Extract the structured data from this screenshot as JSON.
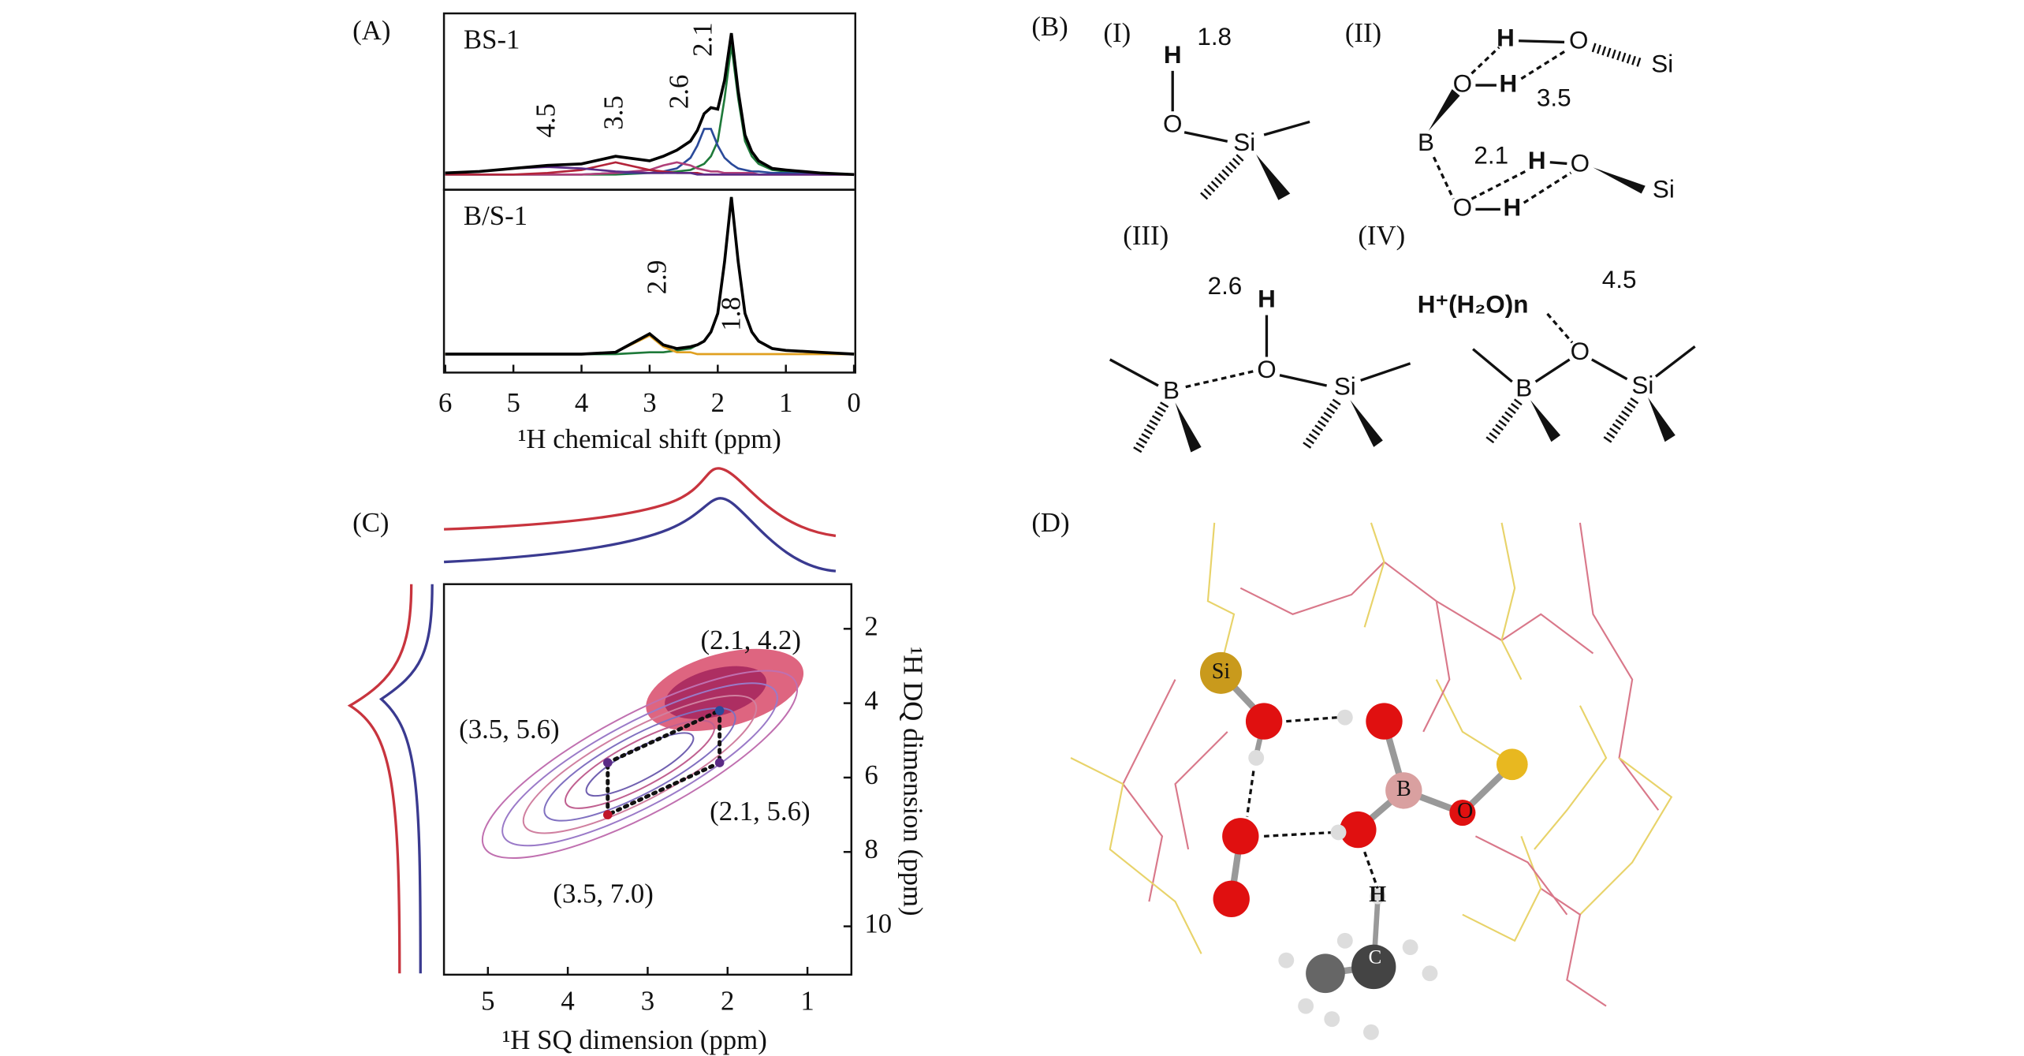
{
  "panel_labels": [
    "(A)",
    "(B)",
    "(C)",
    "(D)"
  ],
  "chart_data": [
    {
      "type": "line",
      "xlabel": "¹H chemical shift (ppm)",
      "xlim": [
        6,
        0
      ],
      "xticks": [
        6,
        5,
        4,
        3,
        2,
        1,
        0
      ],
      "x": [
        6,
        5.5,
        5,
        4.5,
        4,
        3.5,
        3,
        2.8,
        2.6,
        2.4,
        2.3,
        2.2,
        2.1,
        2,
        1.9,
        1.8,
        1.7,
        1.6,
        1.5,
        1.4,
        1.2,
        1,
        0.5,
        0
      ],
      "subplots": [
        {
          "label": "BS-1",
          "ylim": [
            -10,
            106
          ],
          "series": [
            {
              "color": "#000000",
              "values": [
                1,
                2,
                4,
                6,
                7,
                12,
                9,
                12,
                16,
                22,
                29,
                40,
                44,
                43,
                62,
                93,
                55,
                26,
                15,
                9,
                4,
                3,
                1,
                0
              ]
            },
            {
              "color": "#5b2a86",
              "label": 4.5,
              "values": [
                1,
                2,
                4,
                5,
                4,
                2,
                1,
                1,
                1,
                1,
                0,
                0,
                0,
                0,
                0,
                0,
                0,
                0,
                0,
                0,
                0,
                0,
                0,
                0
              ]
            },
            {
              "color": "#b3243a",
              "label": 3.5,
              "values": [
                0,
                0,
                0,
                1,
                3,
                8,
                3,
                2,
                1,
                1,
                1,
                0,
                0,
                0,
                0,
                0,
                0,
                0,
                0,
                0,
                0,
                0,
                0,
                0
              ]
            },
            {
              "color": "#b0407a",
              "label": 2.6,
              "values": [
                0,
                0,
                0,
                0,
                0,
                1,
                3,
                6,
                8,
                6,
                4,
                3,
                2,
                2,
                1,
                1,
                1,
                1,
                1,
                0,
                0,
                0,
                0,
                0
              ]
            },
            {
              "color": "#2a4a9a",
              "label": 2.1,
              "values": [
                0,
                0,
                0,
                0,
                0,
                1,
                1,
                2,
                4,
                11,
                19,
                30,
                30,
                19,
                11,
                7,
                4,
                3,
                2,
                2,
                1,
                1,
                0,
                0
              ]
            },
            {
              "color": "#1f7a3a",
              "values": [
                0,
                0,
                0,
                0,
                0,
                0,
                1,
                1,
                2,
                3,
                5,
                7,
                12,
                22,
                50,
                85,
                50,
                22,
                12,
                7,
                3,
                2,
                1,
                0
              ]
            }
          ]
        },
        {
          "label": "B/S-1",
          "ylim": [
            -10,
            89
          ],
          "series": [
            {
              "color": "#000000",
              "values": [
                0,
                0,
                0,
                0,
                0,
                1,
                11,
                5,
                3,
                4,
                5,
                7,
                12,
                22,
                50,
                85,
                50,
                22,
                12,
                7,
                3,
                2,
                1,
                0
              ]
            },
            {
              "color": "#e0a020",
              "label": 2.9,
              "values": [
                0,
                0,
                0,
                0,
                0,
                1,
                10,
                4,
                1,
                1,
                0,
                0,
                0,
                0,
                0,
                0,
                0,
                0,
                0,
                0,
                0,
                0,
                0,
                0
              ]
            },
            {
              "color": "#1f7a3a",
              "label": 1.8,
              "values": [
                0,
                0,
                0,
                0,
                0,
                0,
                1,
                1,
                2,
                3,
                5,
                7,
                12,
                22,
                50,
                85,
                50,
                22,
                12,
                7,
                3,
                2,
                1,
                0
              ]
            }
          ]
        }
      ]
    },
    {
      "type": "contour",
      "xlabel": "¹H SQ dimension (ppm)",
      "ylabel": "¹H DQ dimension (ppm)",
      "xlim": [
        5.55,
        0.45
      ],
      "xticks": [
        5,
        4,
        3,
        2,
        1
      ],
      "ylim": [
        0.8,
        11.3
      ],
      "yticks": [
        2,
        4,
        6,
        8,
        10
      ],
      "points": [
        {
          "x": 2.1,
          "y": 4.2,
          "label": "(2.1, 4.2)",
          "color": "#2a4a9a"
        },
        {
          "x": 3.5,
          "y": 5.6,
          "label": "(3.5, 5.6)",
          "color": "#5b2a86"
        },
        {
          "x": 2.1,
          "y": 5.6,
          "label": "(2.1, 5.6)",
          "color": "#5b2a86"
        },
        {
          "x": 3.5,
          "y": 7.0,
          "label": "(3.5, 7.0)",
          "color": "#c0142a"
        }
      ]
    }
  ],
  "structures": [
    {
      "label": "(I)",
      "texts": [
        "H",
        "1.8",
        "O",
        "Si"
      ]
    },
    {
      "label": "(II)",
      "texts": [
        "H",
        "O",
        "Si",
        "O",
        "H",
        "3.5",
        "B",
        "2.1",
        "H",
        "O",
        "Si",
        "O",
        "H"
      ]
    },
    {
      "label": "(III)",
      "texts": [
        "2.6",
        "H",
        "O",
        "B",
        "Si"
      ]
    },
    {
      "label": "(IV)",
      "texts": [
        "4.5",
        "H⁺(H₂O)n",
        "O",
        "B",
        "Si"
      ]
    }
  ],
  "model": {
    "atoms": [
      "Si",
      "B",
      "O",
      "H",
      "C"
    ]
  }
}
